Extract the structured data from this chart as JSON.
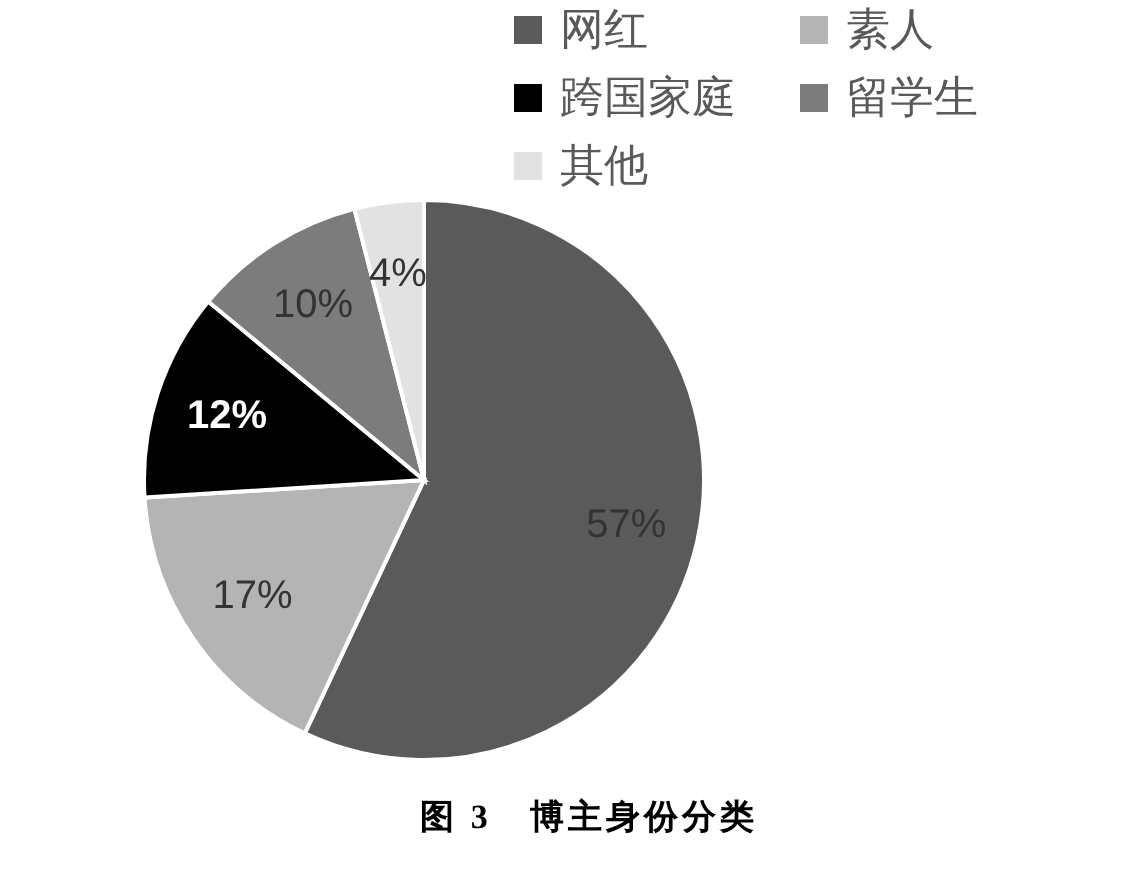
{
  "chart_data": {
    "type": "pie",
    "title": "图 3　博主身份分类",
    "categories": [
      "网红",
      "素人",
      "跨国家庭",
      "留学生",
      "其他"
    ],
    "values": [
      57,
      17,
      12,
      10,
      4
    ],
    "colors": [
      "#5a5a5a",
      "#b4b4b4",
      "#000000",
      "#7c7c7c",
      "#e2e2e2"
    ],
    "value_labels": [
      "57%",
      "17%",
      "12%",
      "10%",
      "4%"
    ],
    "legend": "top right"
  }
}
